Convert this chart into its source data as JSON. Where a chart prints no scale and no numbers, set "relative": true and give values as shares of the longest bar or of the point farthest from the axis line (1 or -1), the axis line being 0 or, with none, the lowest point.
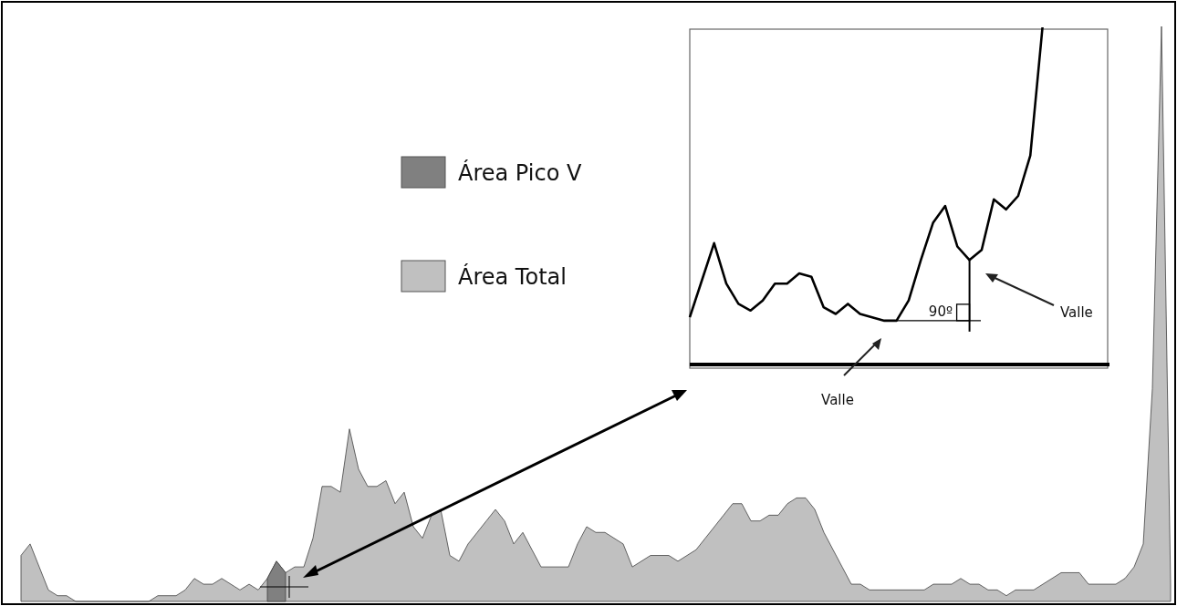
{
  "chart_data": [
    {
      "type": "area",
      "relative": true,
      "legend": "top left",
      "categories": [
        null,
        null,
        null,
        null,
        null,
        null,
        null,
        null,
        null,
        null,
        null,
        null,
        null,
        null,
        null,
        null,
        null,
        null,
        null,
        null,
        null,
        null,
        null,
        null,
        null,
        null,
        null,
        null,
        null,
        null,
        null,
        null,
        null,
        null,
        null,
        null,
        null,
        null,
        null,
        null,
        null,
        null,
        null,
        null,
        null,
        null,
        null,
        null,
        null,
        null,
        null,
        null,
        null,
        null,
        null,
        null,
        null,
        null,
        null,
        null,
        null,
        null,
        null,
        null,
        null,
        null,
        null,
        null,
        null,
        null,
        null,
        null,
        null,
        null,
        null,
        null,
        null,
        null,
        null,
        null,
        null,
        null,
        null,
        null,
        null,
        null,
        null,
        null,
        null,
        null,
        null,
        null,
        null,
        null,
        null,
        null,
        null,
        null,
        null,
        null,
        null,
        null,
        null,
        null,
        null,
        null,
        null,
        null,
        null,
        null,
        null,
        null,
        null,
        null,
        null,
        null,
        null,
        null,
        null,
        null,
        null,
        null,
        null,
        null,
        null,
        null,
        null
      ],
      "series": [
        {
          "name": "Área Total",
          "color": "#c0c0c0",
          "values": [
            0.08,
            0.1,
            0.06,
            0.02,
            0.01,
            0.01,
            0,
            0,
            0,
            0,
            0,
            0,
            0,
            0,
            0,
            0.01,
            0.01,
            0.01,
            0.02,
            0.04,
            0.03,
            0.03,
            0.04,
            0.03,
            0.02,
            0.03,
            0.02,
            0.04,
            0.07,
            0.05,
            0.06,
            0.06,
            0.11,
            0.2,
            0.2,
            0.19,
            0.3,
            0.23,
            0.2,
            0.2,
            0.21,
            0.17,
            0.19,
            0.13,
            0.11,
            0.15,
            0.16,
            0.08,
            0.07,
            0.1,
            0.12,
            0.14,
            0.16,
            0.14,
            0.1,
            0.12,
            0.09,
            0.06,
            0.06,
            0.06,
            0.06,
            0.1,
            0.13,
            0.12,
            0.12,
            0.11,
            0.1,
            0.06,
            0.07,
            0.08,
            0.08,
            0.08,
            0.07,
            0.08,
            0.09,
            0.11,
            0.13,
            0.15,
            0.17,
            0.17,
            0.14,
            0.14,
            0.15,
            0.15,
            0.17,
            0.18,
            0.18,
            0.16,
            0.12,
            0.09,
            0.06,
            0.03,
            0.03,
            0.02,
            0.02,
            0.02,
            0.02,
            0.02,
            0.02,
            0.02,
            0.03,
            0.03,
            0.03,
            0.04,
            0.03,
            0.03,
            0.02,
            0.02,
            0.01,
            0.02,
            0.02,
            0.02,
            0.03,
            0.04,
            0.05,
            0.05,
            0.05,
            0.03,
            0.03,
            0.03,
            0.03,
            0.04,
            0.06,
            0.1,
            0.37,
            1,
            0.03
          ]
        },
        {
          "name": "Área Pico V",
          "color": "#808080",
          "values": [
            null,
            null,
            null,
            null,
            null,
            null,
            null,
            null,
            null,
            null,
            null,
            null,
            null,
            null,
            null,
            null,
            null,
            null,
            null,
            null,
            null,
            null,
            null,
            null,
            null,
            null,
            null,
            0.04,
            0.07,
            0.05,
            null,
            null,
            null,
            null,
            null,
            null,
            null,
            null,
            null,
            null,
            null,
            null,
            null,
            null,
            null,
            null,
            null,
            null,
            null,
            null,
            null,
            null,
            null,
            null,
            null,
            null,
            null,
            null,
            null,
            null,
            null,
            null,
            null,
            null,
            null,
            null,
            null,
            null,
            null,
            null,
            null,
            null,
            null,
            null,
            null,
            null,
            null,
            null,
            null,
            null,
            null,
            null,
            null,
            null,
            null,
            null,
            null,
            null,
            null,
            null,
            null,
            null,
            null,
            null,
            null,
            null,
            null,
            null,
            null,
            null,
            null,
            null,
            null,
            null,
            null,
            null,
            null,
            null,
            null,
            null,
            null,
            null,
            null,
            null,
            null,
            null,
            null,
            null,
            null,
            null,
            null,
            null,
            null,
            null,
            null,
            null,
            null
          ]
        }
      ]
    },
    {
      "type": "line",
      "relative": true,
      "categories": [
        null,
        null,
        null,
        null,
        null,
        null,
        null,
        null,
        null,
        null,
        null,
        null,
        null,
        null,
        null,
        null,
        null,
        null,
        null,
        null,
        null,
        null,
        null,
        null,
        null,
        null,
        null,
        null,
        null,
        null,
        null,
        null,
        null,
        null,
        null
      ],
      "series": [
        {
          "color": "#000000",
          "values": [
            0.14,
            0.25,
            0.36,
            0.24,
            0.18,
            0.16,
            0.19,
            0.24,
            0.24,
            0.27,
            0.26,
            0.17,
            0.15,
            0.18,
            0.15,
            0.14,
            0.13,
            0.13,
            0.19,
            0.31,
            0.42,
            0.47,
            0.35,
            0.31,
            0.34,
            0.49,
            0.46,
            0.5,
            0.62,
            1,
            null,
            null,
            null,
            null,
            null
          ]
        }
      ],
      "annotations": [
        "Valle",
        "Valle",
        "90º"
      ]
    }
  ]
}
